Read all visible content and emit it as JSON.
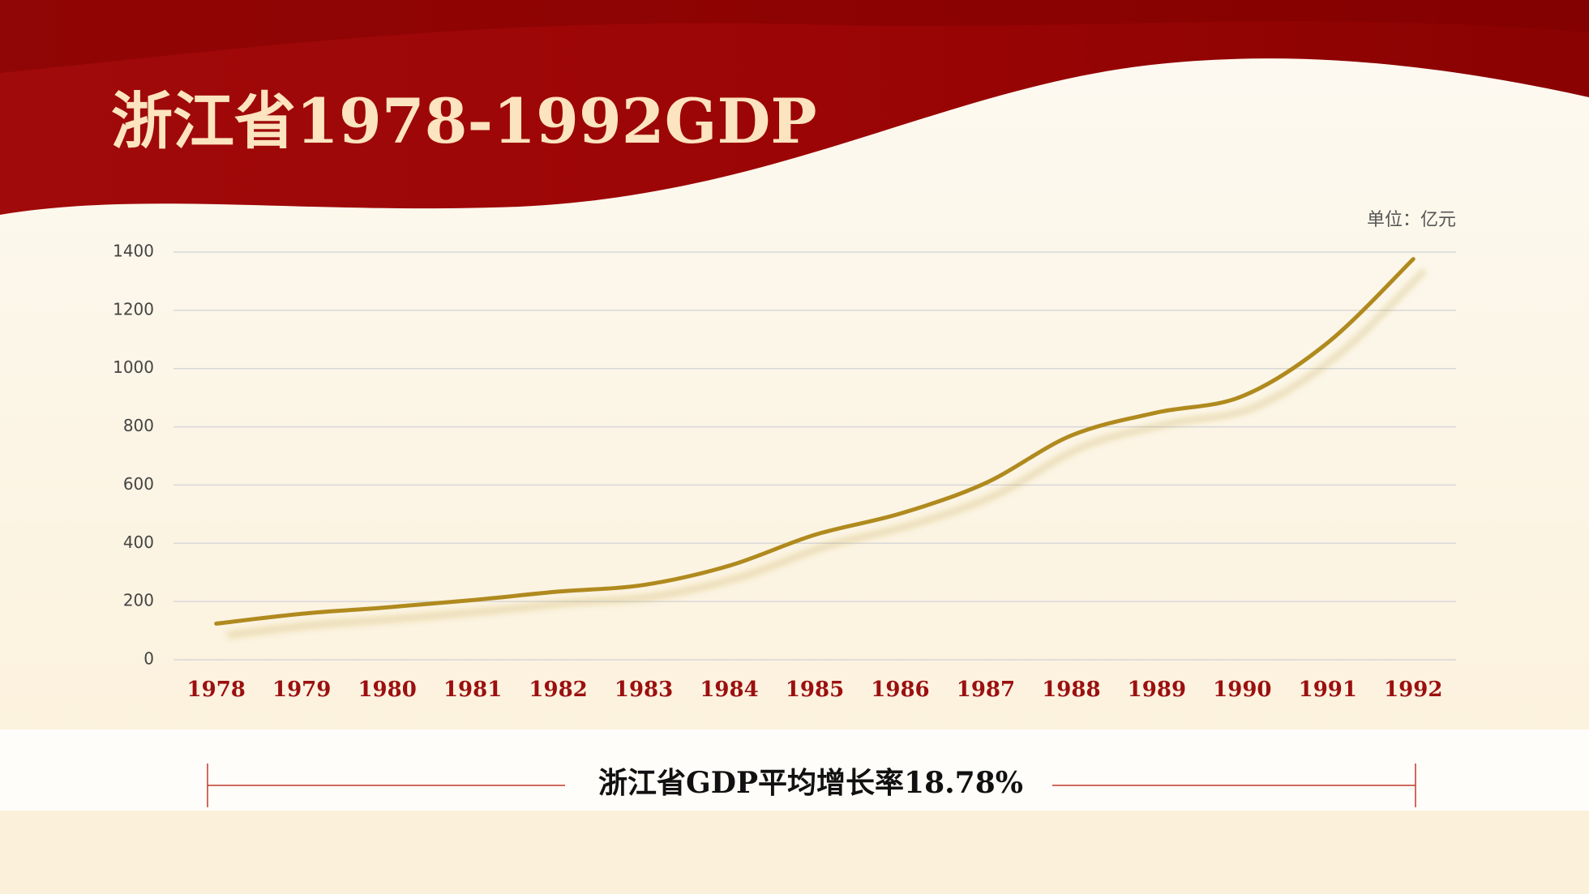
{
  "chart_data": {
    "type": "line",
    "title": "浙江省1978-1992GDP",
    "unit_label": "单位：亿元",
    "annotation": "浙江省GDP平均增长率18.78%",
    "categories": [
      "1978",
      "1979",
      "1980",
      "1981",
      "1982",
      "1983",
      "1984",
      "1985",
      "1986",
      "1987",
      "1988",
      "1989",
      "1990",
      "1991",
      "1992"
    ],
    "values": [
      124,
      158,
      180,
      205,
      234,
      257,
      323,
      429,
      502,
      607,
      770,
      849,
      905,
      1089,
      1376
    ],
    "color": "#b08a1e",
    "ylim": [
      0,
      1400
    ],
    "yticks": [
      0,
      200,
      400,
      600,
      800,
      1000,
      1200,
      1400
    ],
    "grid": true
  }
}
